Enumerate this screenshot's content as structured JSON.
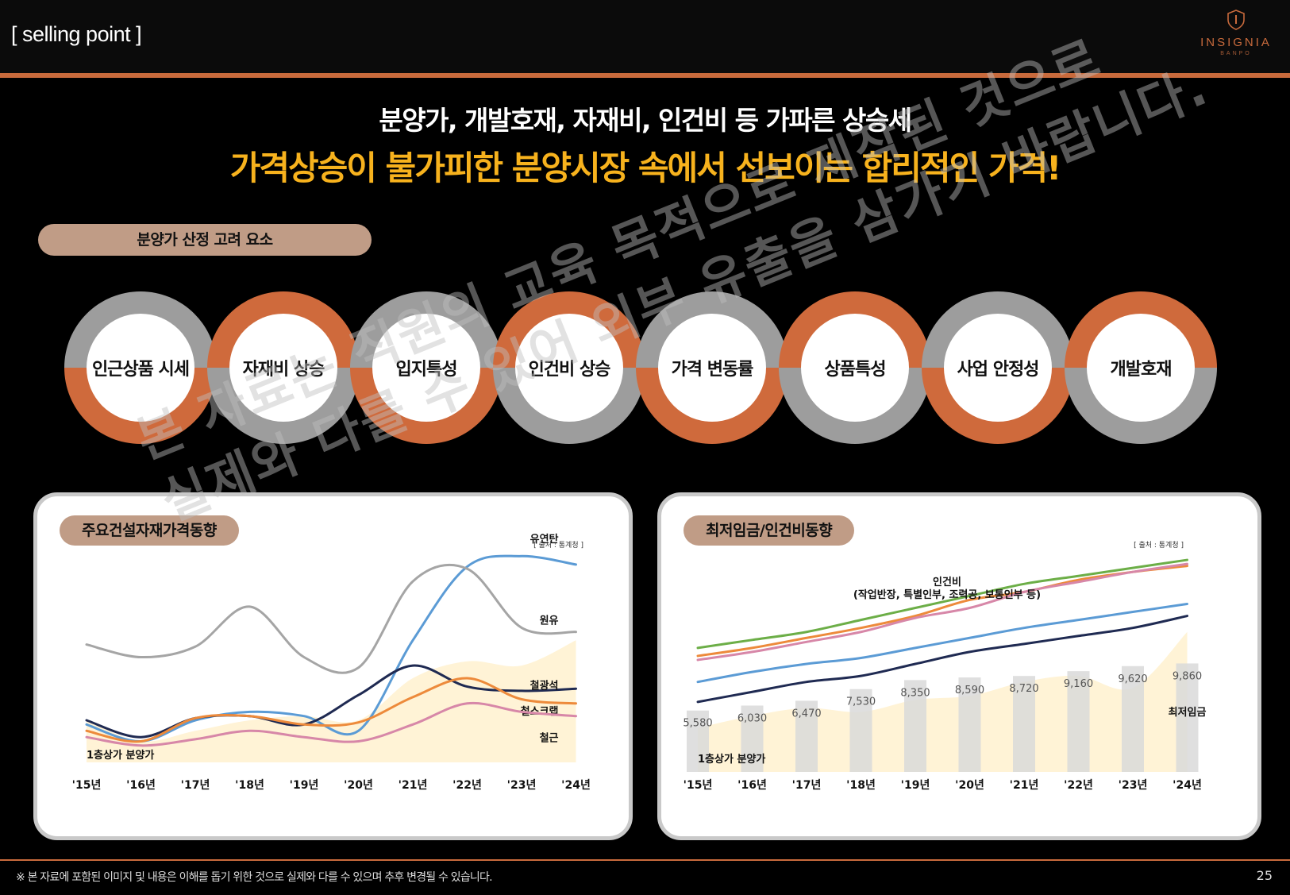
{
  "header": {
    "section_tag": "[ selling point  ]",
    "logo": {
      "name": "INSIGNIA",
      "sub": "BANPO"
    }
  },
  "headline": {
    "line1": "분양가, 개발호재, 자재비, 인건비 등 가파른 상승세",
    "line2": "가격상승이 불가피한 분양시장 속에서 선보이는 합리적인 가격!"
  },
  "factors": {
    "title": "분양가 산정 고려 요소",
    "items": [
      "인근상품 시세",
      "자재비 상승",
      "입지특성",
      "인건비 상승",
      "가격 변동률",
      "상품특성",
      "사업 안정성",
      "개발호재"
    ]
  },
  "colors": {
    "accent_orange": "#cf6a3c",
    "headline_yellow": "#f7b21d",
    "pill_tan": "#c09c86",
    "ring_grey": "#9d9d9d"
  },
  "chart_data": [
    {
      "type": "line",
      "title": "주요건설자재가격동향",
      "source": "[ 출처 : 통계청 ]",
      "categories": [
        "'15년",
        "'16년",
        "'17년",
        "'18년",
        "'19년",
        "'20년",
        "'21년",
        "'22년",
        "'23년",
        "'24년"
      ],
      "series": [
        {
          "name": "유연탄",
          "color": "#5b9bd5",
          "values": [
            18,
            10,
            20,
            24,
            22,
            15,
            58,
            93,
            98,
            94
          ]
        },
        {
          "name": "원유",
          "color": "#a5a5a5",
          "values": [
            56,
            50,
            55,
            74,
            50,
            45,
            86,
            92,
            64,
            62
          ]
        },
        {
          "name": "철광석",
          "color": "#1f2a52",
          "values": [
            20,
            12,
            21,
            22,
            18,
            32,
            46,
            36,
            34,
            35
          ]
        },
        {
          "name": "철스크랩",
          "color": "#ed8a3b",
          "values": [
            15,
            10,
            21,
            22,
            18,
            19,
            31,
            40,
            30,
            28
          ]
        },
        {
          "name": "철근",
          "color": "#d787a8",
          "values": [
            12,
            8,
            11,
            15,
            12,
            10,
            18,
            28,
            24,
            22
          ]
        }
      ],
      "area": {
        "name": "1층상가 분양가",
        "color": "#fff3d6",
        "values": [
          20,
          10,
          15,
          20,
          22,
          20,
          40,
          48,
          46,
          58
        ]
      },
      "ylim": [
        0,
        100
      ]
    },
    {
      "type": "line",
      "title": "최저임금/인건비동향",
      "source": "[ 출처 : 통계청 ]",
      "categories": [
        "'15년",
        "'16년",
        "'17년",
        "'18년",
        "'19년",
        "'20년",
        "'21년",
        "'22년",
        "'23년",
        "'24년"
      ],
      "annotation_line1": "인건비",
      "annotation_line2": "(작업반장, 특별인부, 조력공, 보통인부 등)",
      "bars": {
        "name": "최저임금",
        "color": "#d9d9d9",
        "values": [
          5580,
          6030,
          6470,
          7530,
          8350,
          8590,
          8720,
          9160,
          9620,
          9860
        ],
        "labels": [
          "5,580",
          "6,030",
          "6,470",
          "7,530",
          "8,350",
          "8,590",
          "8,720",
          "9,160",
          "9,620",
          "9,860"
        ]
      },
      "area": {
        "name": "1층상가 분양가",
        "color": "#fff3d6",
        "values": [
          22,
          28,
          32,
          30,
          36,
          38,
          45,
          48,
          42,
          70
        ]
      },
      "series": [
        {
          "name": "인건비 1",
          "color": "#6cae47",
          "values": [
            62,
            66,
            70,
            76,
            82,
            88,
            94,
            98,
            102,
            106
          ]
        },
        {
          "name": "인건비 2",
          "color": "#ed8a3b",
          "values": [
            58,
            62,
            67,
            72,
            78,
            86,
            90,
            96,
            100,
            103
          ]
        },
        {
          "name": "인건비 3",
          "color": "#d787a8",
          "values": [
            56,
            60,
            65,
            70,
            77,
            82,
            90,
            95,
            100,
            104
          ]
        },
        {
          "name": "인건비 4",
          "color": "#5b9bd5",
          "values": [
            45,
            50,
            54,
            57,
            62,
            67,
            72,
            76,
            80,
            84
          ]
        },
        {
          "name": "인건비 5",
          "color": "#1f2a52",
          "values": [
            35,
            40,
            45,
            48,
            54,
            60,
            64,
            68,
            72,
            78
          ]
        }
      ],
      "ylim": [
        0,
        110
      ]
    }
  ],
  "footer": {
    "note": "※ 본 자료에 포함된 이미지 및 내용은 이해를 돕기 위한 것으로 실제와 다를 수 있으며 추후 변경될 수 있습니다.",
    "page_number": "25"
  },
  "watermark": {
    "line1": "본 자료는 직원의 교육 목적으로 제작된 것으로",
    "line2": "실제와 다를 수 있어 외부 유출을 삼가기 바랍니다."
  }
}
